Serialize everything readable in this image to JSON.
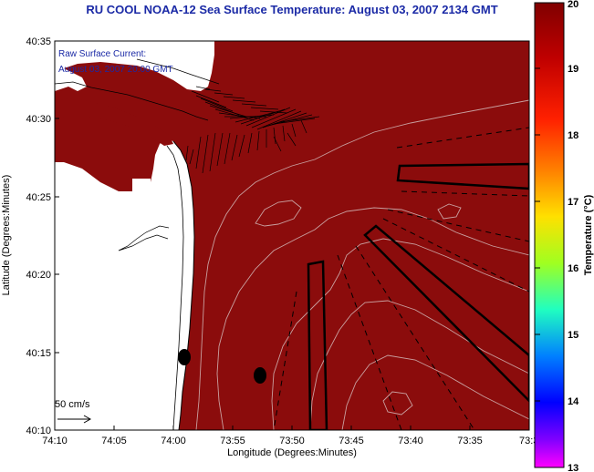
{
  "title": "RU COOL  NOAA-12  Sea Surface Temperature:  August 03, 2007 2134 GMT",
  "annotation": {
    "line1": "Raw Surface Current:",
    "line2": "August 03, 2007 20:00 GMT"
  },
  "axes": {
    "xlabel": "Longitude (Degrees:Minutes)",
    "ylabel": "Latitude (Degrees:Minutes)",
    "x_ticks": [
      "74:10",
      "74:05",
      "74:00",
      "73:55",
      "73:50",
      "73:45",
      "73:40",
      "73:35",
      "73:3"
    ],
    "y_ticks": [
      "40:35",
      "40:30",
      "40:25",
      "40:20",
      "40:15",
      "40:10"
    ]
  },
  "scale": {
    "label": "50 cm/s"
  },
  "colorbar": {
    "label": "Temperature (°C)",
    "ticks": [
      "20",
      "19",
      "18",
      "17",
      "16",
      "15",
      "14",
      "13"
    ],
    "colors": [
      "#800000",
      "#ff0000",
      "#ff8000",
      "#ffff00",
      "#80ff00",
      "#00ffff",
      "#0000ff",
      "#ff00ff"
    ]
  },
  "colors": {
    "ocean": "#8b0c0c",
    "land": "#ffffff",
    "title": "#1b2aa6"
  }
}
